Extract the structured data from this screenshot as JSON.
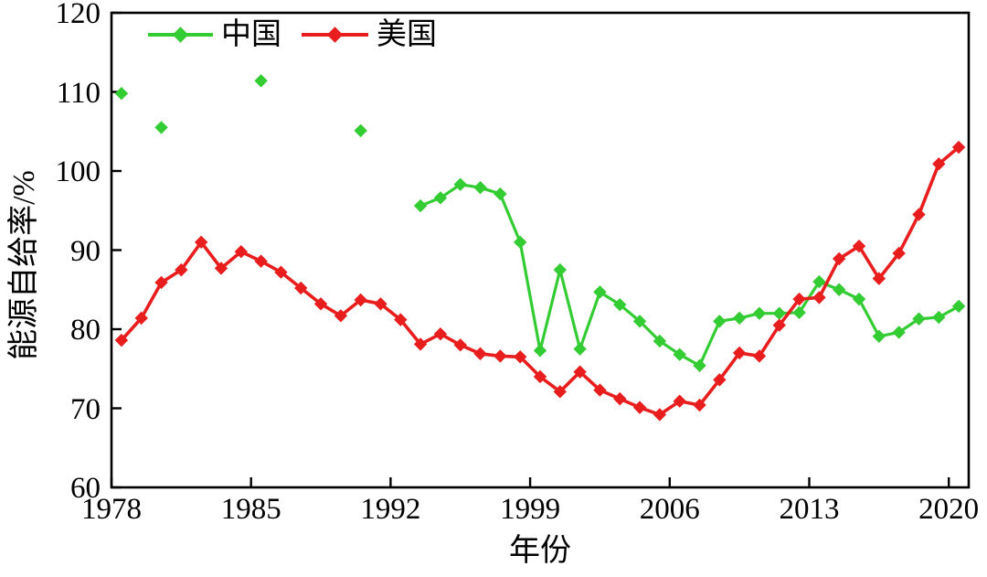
{
  "chart_data": {
    "type": "line",
    "title": "",
    "xlabel": "年份",
    "ylabel": "能源自给率/%",
    "xlim": [
      1978,
      2021
    ],
    "ylim": [
      60,
      120
    ],
    "xticks": [
      1978,
      1985,
      1992,
      1999,
      2006,
      2013,
      2020
    ],
    "yticks": [
      120,
      110,
      100,
      90,
      80,
      70,
      60
    ],
    "grid": false,
    "legend_position": "top-left-inside",
    "marker": "diamond",
    "x_marker_offset_years": 0.5,
    "axis_color": "#000000",
    "background": "#ffffff",
    "series": [
      {
        "name": "中国",
        "color": "#33cc33",
        "line_width": 3.2,
        "segments": [
          {
            "style": "scatter",
            "points": [
              [
                1978,
                109.8
              ],
              [
                1980,
                105.5
              ],
              [
                1985,
                111.4
              ],
              [
                1990,
                105.1
              ]
            ]
          },
          {
            "style": "line",
            "points": [
              [
                1993,
                95.6
              ],
              [
                1994,
                96.6
              ],
              [
                1995,
                98.3
              ],
              [
                1996,
                97.9
              ],
              [
                1997,
                97.1
              ],
              [
                1998,
                91.0
              ],
              [
                1999,
                77.3
              ],
              [
                2000,
                87.5
              ],
              [
                2001,
                77.5
              ],
              [
                2002,
                84.7
              ],
              [
                2003,
                83.1
              ],
              [
                2004,
                81.0
              ],
              [
                2005,
                78.5
              ],
              [
                2006,
                76.8
              ],
              [
                2007,
                75.4
              ],
              [
                2008,
                81.0
              ],
              [
                2009,
                81.4
              ],
              [
                2010,
                82.0
              ],
              [
                2011,
                82.0
              ],
              [
                2012,
                82.1
              ],
              [
                2013,
                86.0
              ],
              [
                2014,
                85.0
              ],
              [
                2015,
                83.8
              ],
              [
                2016,
                79.1
              ],
              [
                2017,
                79.6
              ],
              [
                2018,
                81.3
              ],
              [
                2019,
                81.5
              ],
              [
                2020,
                82.9
              ]
            ]
          }
        ]
      },
      {
        "name": "美国",
        "color": "#e81e1e",
        "line_width": 3.6,
        "segments": [
          {
            "style": "line",
            "points": [
              [
                1978,
                78.6
              ],
              [
                1979,
                81.4
              ],
              [
                1980,
                85.9
              ],
              [
                1981,
                87.5
              ],
              [
                1982,
                91.0
              ],
              [
                1983,
                87.7
              ],
              [
                1984,
                89.8
              ],
              [
                1985,
                88.6
              ],
              [
                1986,
                87.2
              ],
              [
                1987,
                85.2
              ],
              [
                1988,
                83.2
              ],
              [
                1989,
                81.7
              ],
              [
                1990,
                83.7
              ],
              [
                1991,
                83.2
              ],
              [
                1992,
                81.2
              ],
              [
                1993,
                78.1
              ],
              [
                1994,
                79.4
              ],
              [
                1995,
                78.0
              ],
              [
                1996,
                76.9
              ],
              [
                1997,
                76.6
              ],
              [
                1998,
                76.5
              ],
              [
                1999,
                74.0
              ],
              [
                2000,
                72.1
              ],
              [
                2001,
                74.6
              ],
              [
                2002,
                72.3
              ],
              [
                2003,
                71.2
              ],
              [
                2004,
                70.1
              ],
              [
                2005,
                69.2
              ],
              [
                2006,
                70.9
              ],
              [
                2007,
                70.4
              ],
              [
                2008,
                73.6
              ],
              [
                2009,
                77.0
              ],
              [
                2010,
                76.6
              ],
              [
                2011,
                80.5
              ],
              [
                2012,
                83.8
              ],
              [
                2013,
                84.0
              ],
              [
                2014,
                88.9
              ],
              [
                2015,
                90.5
              ],
              [
                2016,
                86.4
              ],
              [
                2017,
                89.6
              ],
              [
                2018,
                94.5
              ],
              [
                2019,
                100.9
              ],
              [
                2020,
                103.0
              ]
            ]
          }
        ]
      }
    ]
  }
}
